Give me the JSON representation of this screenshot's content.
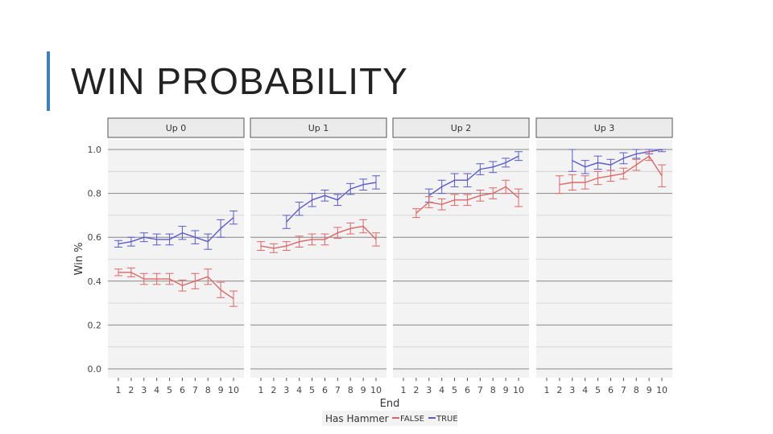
{
  "slide": {
    "title": "WIN PROBABILITY"
  },
  "chart_data": {
    "type": "line",
    "facets": [
      "Up 0",
      "Up 1",
      "Up 2",
      "Up 3"
    ],
    "x": [
      1,
      2,
      3,
      4,
      5,
      6,
      7,
      8,
      9,
      10
    ],
    "xlabel": "End",
    "ylabel": "Win %",
    "ylim": [
      0,
      1
    ],
    "yticks": [
      "0.0",
      "0.2",
      "0.4",
      "0.6",
      "0.8",
      "1.0"
    ],
    "legend": {
      "title": "Has Hammer",
      "position": "bottom",
      "entries": [
        "FALSE",
        "TRUE"
      ]
    },
    "colors": {
      "FALSE": "#e06666",
      "TRUE": "#5a5ad0"
    },
    "panels": [
      {
        "facet": "Up 0",
        "series": [
          {
            "name": "TRUE",
            "x": [
              1,
              2,
              3,
              4,
              5,
              6,
              7,
              8,
              9,
              10
            ],
            "y": [
              0.57,
              0.58,
              0.6,
              0.59,
              0.59,
              0.62,
              0.6,
              0.58,
              0.64,
              0.69
            ],
            "err": [
              0.015,
              0.02,
              0.02,
              0.025,
              0.025,
              0.03,
              0.03,
              0.035,
              0.04,
              0.03
            ]
          },
          {
            "name": "FALSE",
            "x": [
              1,
              2,
              3,
              4,
              5,
              6,
              7,
              8,
              9,
              10
            ],
            "y": [
              0.44,
              0.44,
              0.41,
              0.41,
              0.41,
              0.38,
              0.4,
              0.42,
              0.36,
              0.32
            ],
            "err": [
              0.015,
              0.02,
              0.025,
              0.025,
              0.025,
              0.025,
              0.035,
              0.035,
              0.035,
              0.035
            ]
          }
        ]
      },
      {
        "facet": "Up 1",
        "series": [
          {
            "name": "TRUE",
            "x": [
              3,
              4,
              5,
              6,
              7,
              8,
              9,
              10
            ],
            "y": [
              0.67,
              0.73,
              0.77,
              0.79,
              0.77,
              0.82,
              0.84,
              0.85
            ],
            "err": [
              0.03,
              0.03,
              0.03,
              0.025,
              0.025,
              0.025,
              0.025,
              0.03
            ]
          },
          {
            "name": "FALSE",
            "x": [
              1,
              2,
              3,
              4,
              5,
              6,
              7,
              8,
              9,
              10
            ],
            "y": [
              0.56,
              0.55,
              0.56,
              0.58,
              0.59,
              0.59,
              0.62,
              0.64,
              0.65,
              0.59
            ],
            "err": [
              0.02,
              0.02,
              0.02,
              0.025,
              0.025,
              0.025,
              0.025,
              0.025,
              0.03,
              0.03
            ]
          }
        ]
      },
      {
        "facet": "Up 2",
        "series": [
          {
            "name": "TRUE",
            "x": [
              3,
              4,
              5,
              6,
              7,
              8,
              9,
              10
            ],
            "y": [
              0.79,
              0.83,
              0.86,
              0.86,
              0.91,
              0.92,
              0.94,
              0.97
            ],
            "err": [
              0.03,
              0.03,
              0.03,
              0.03,
              0.025,
              0.025,
              0.02,
              0.02
            ]
          },
          {
            "name": "FALSE",
            "x": [
              2,
              3,
              4,
              5,
              6,
              7,
              8,
              9,
              10
            ],
            "y": [
              0.71,
              0.76,
              0.75,
              0.77,
              0.77,
              0.79,
              0.8,
              0.83,
              0.78
            ],
            "err": [
              0.02,
              0.025,
              0.025,
              0.025,
              0.025,
              0.025,
              0.025,
              0.03,
              0.04
            ]
          }
        ]
      },
      {
        "facet": "Up 3",
        "series": [
          {
            "name": "TRUE",
            "x": [
              3,
              4,
              5,
              6,
              7,
              8,
              9,
              10
            ],
            "y": [
              0.95,
              0.92,
              0.94,
              0.93,
              0.96,
              0.98,
              0.99,
              1.0
            ],
            "err": [
              0.05,
              0.03,
              0.03,
              0.025,
              0.025,
              0.02,
              0.01,
              0.01
            ]
          },
          {
            "name": "FALSE",
            "x": [
              2,
              3,
              4,
              5,
              6,
              7,
              8,
              9,
              10
            ],
            "y": [
              0.84,
              0.85,
              0.85,
              0.87,
              0.88,
              0.89,
              0.93,
              0.97,
              0.88
            ],
            "err": [
              0.04,
              0.035,
              0.03,
              0.03,
              0.025,
              0.025,
              0.025,
              0.02,
              0.05
            ]
          }
        ]
      }
    ]
  }
}
